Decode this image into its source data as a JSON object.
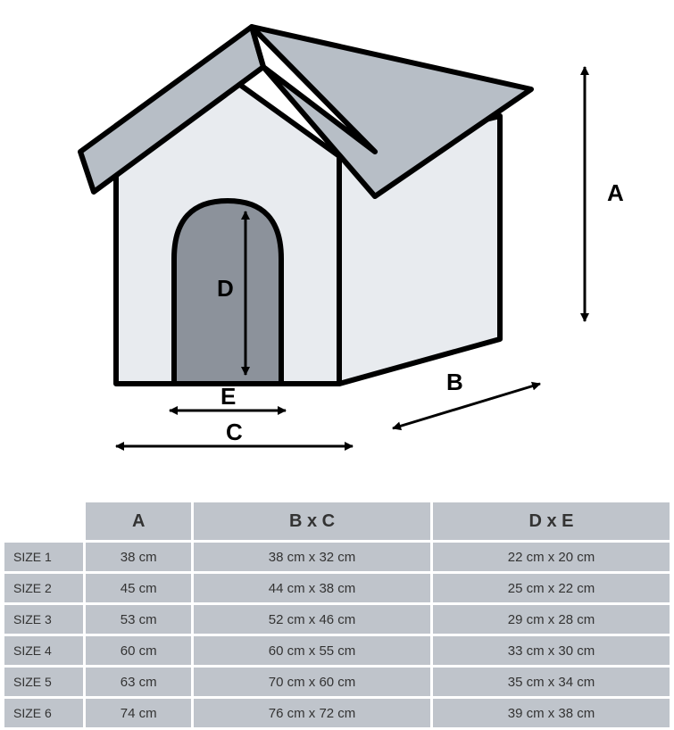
{
  "diagram": {
    "type": "infographic",
    "subject": "pet-house-dimensions",
    "background_color": "#ffffff",
    "stroke_color": "#000000",
    "stroke_width_main": 6,
    "stroke_width_thin": 3,
    "roof_fill": "#b7bec6",
    "wall_fill": "#e8ebef",
    "door_fill": "#8c929b",
    "labels": {
      "A": "A",
      "B": "B",
      "C": "C",
      "D": "D",
      "E": "E"
    },
    "label_fontsize": 26
  },
  "table": {
    "type": "table",
    "cell_bg": "#bfc4cb",
    "text_color": "#333333",
    "header_fontsize": 20,
    "cell_fontsize": 15,
    "columns": [
      "",
      "A",
      "B x C",
      "D x E"
    ],
    "rows": [
      {
        "size": "SIZE 1",
        "A": "38 cm",
        "BC": "38 cm x 32 cm",
        "DE": "22 cm x 20 cm"
      },
      {
        "size": "SIZE 2",
        "A": "45 cm",
        "BC": "44 cm x 38 cm",
        "DE": "25 cm x 22 cm"
      },
      {
        "size": "SIZE 3",
        "A": "53 cm",
        "BC": "52 cm x 46 cm",
        "DE": "29 cm x 28 cm"
      },
      {
        "size": "SIZE 4",
        "A": "60 cm",
        "BC": "60 cm x 55 cm",
        "DE": "33 cm x 30 cm"
      },
      {
        "size": "SIZE 5",
        "A": "63 cm",
        "BC": "70 cm x 60 cm",
        "DE": "35 cm x 34 cm"
      },
      {
        "size": "SIZE 6",
        "A": "74 cm",
        "BC": "76 cm x 72 cm",
        "DE": "39 cm x 38 cm"
      }
    ]
  }
}
